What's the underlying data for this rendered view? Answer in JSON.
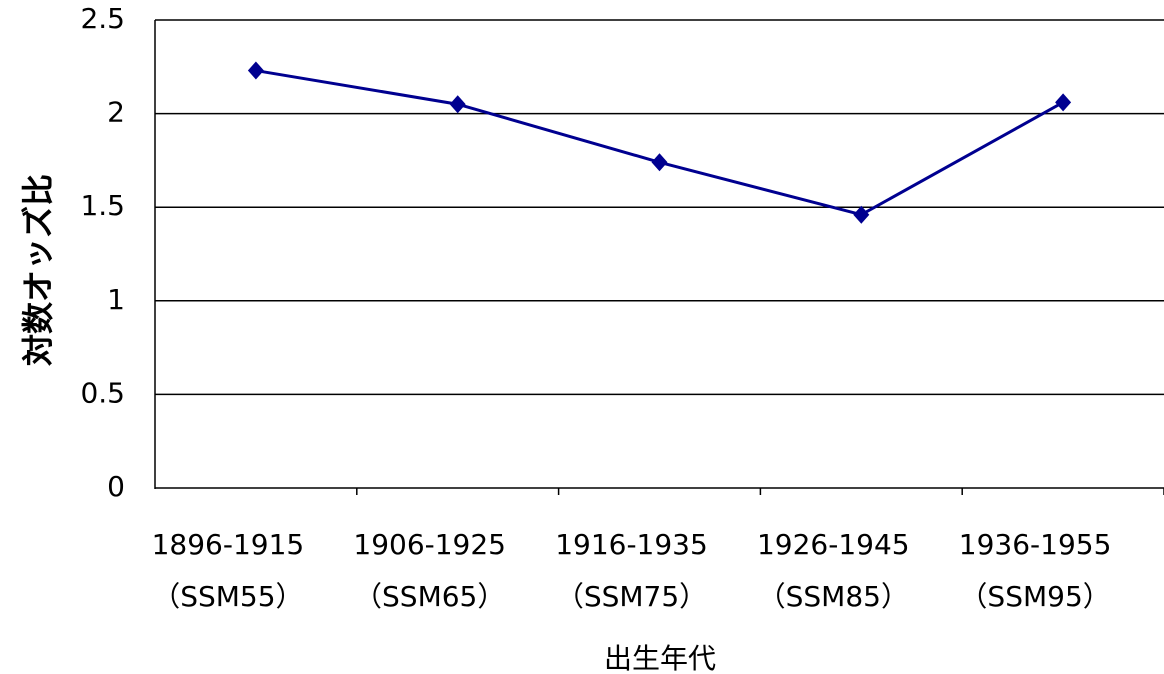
{
  "chart_data": {
    "type": "line",
    "y_label": "対数オッズ比",
    "x_label": "出生年代",
    "categories": [
      [
        "1896-1915",
        "（SSM55）"
      ],
      [
        "1906-1925",
        "（SSM65）"
      ],
      [
        "1916-1935",
        "（SSM75）"
      ],
      [
        "1926-1945",
        "（SSM85）"
      ],
      [
        "1936-1955",
        "（SSM95）"
      ]
    ],
    "values": [
      2.23,
      2.05,
      1.74,
      1.46,
      2.06
    ],
    "color": "#000090",
    "ylim": [
      0,
      2.5
    ],
    "yticks": [
      0,
      0.5,
      1,
      1.5,
      2,
      2.5
    ],
    "grid": true
  }
}
